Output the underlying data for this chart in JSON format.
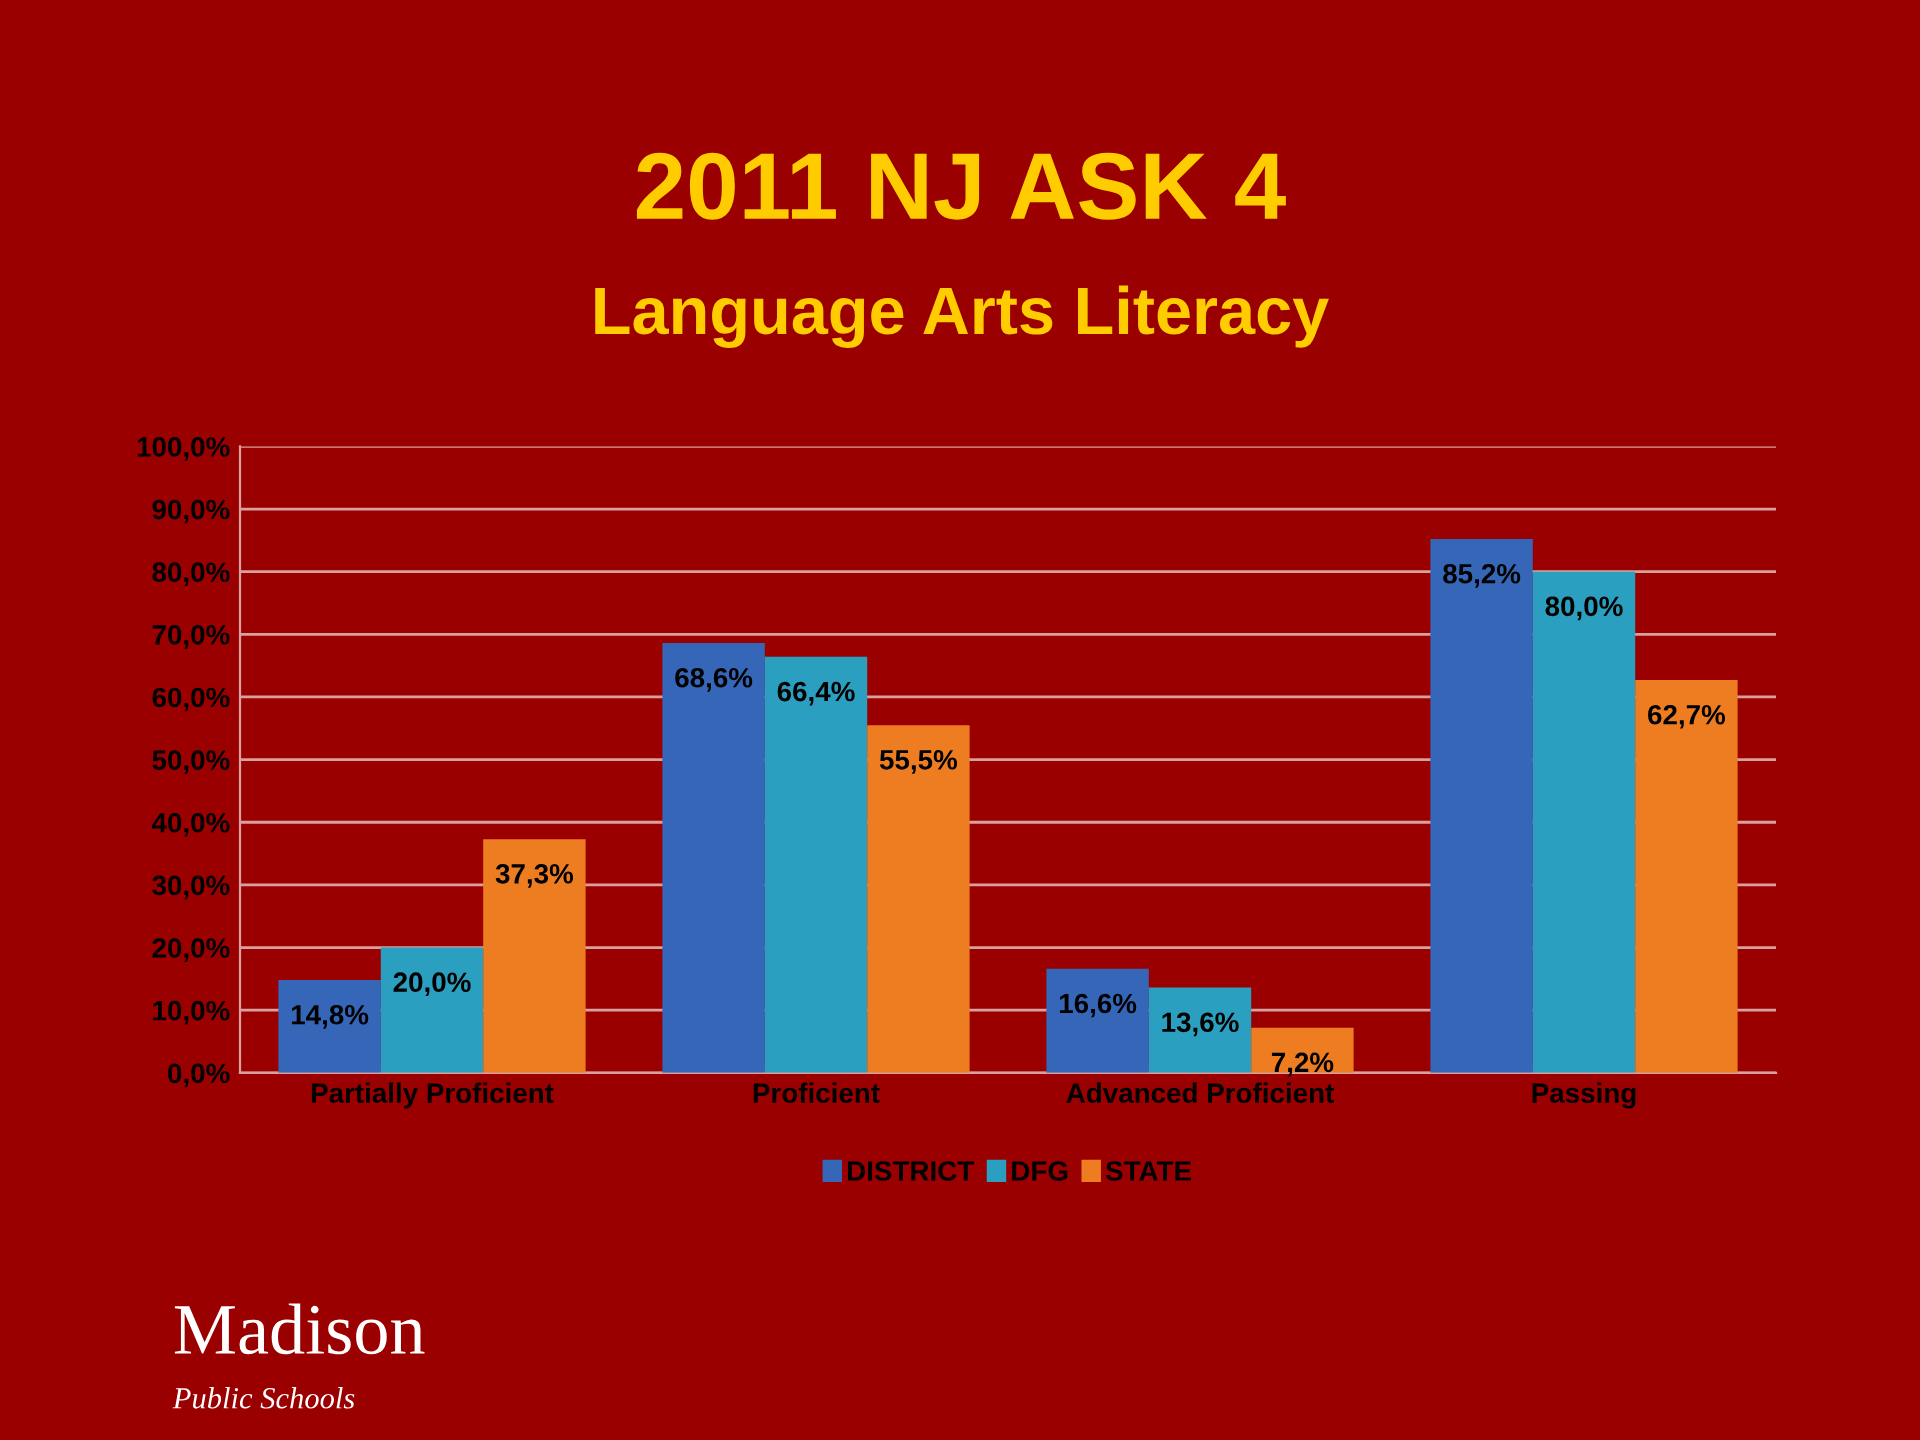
{
  "chart_data": {
    "type": "bar",
    "title": "2011 NJ ASK 4",
    "subtitle": "Language Arts Literacy",
    "categories": [
      "Partially Proficient",
      "Proficient",
      "Advanced Proficient",
      "Passing"
    ],
    "series": [
      {
        "name": "DISTRICT",
        "color": "#3566b8",
        "values": [
          14.8,
          68.6,
          16.6,
          85.2
        ],
        "value_labels": [
          "14,8%",
          "68,6%",
          "16,6%",
          "85,2%"
        ]
      },
      {
        "name": "DFG",
        "color": "#2a9fbf",
        "values": [
          20.0,
          66.4,
          13.6,
          80.0
        ],
        "value_labels": [
          "20,0%",
          "66,4%",
          "13,6%",
          "80,0%"
        ]
      },
      {
        "name": "STATE",
        "color": "#ee7d22",
        "values": [
          37.3,
          55.5,
          7.2,
          62.7
        ],
        "value_labels": [
          "37,3%",
          "55,5%",
          "7,2%",
          "62,7%"
        ]
      }
    ],
    "ylim": [
      0,
      100
    ],
    "yticks": [
      {
        "value": 0,
        "label": "0,0%"
      },
      {
        "value": 10,
        "label": "10,0%"
      },
      {
        "value": 20,
        "label": "20,0%"
      },
      {
        "value": 30,
        "label": "30,0%"
      },
      {
        "value": 40,
        "label": "40,0%"
      },
      {
        "value": 50,
        "label": "50,0%"
      },
      {
        "value": 60,
        "label": "60,0%"
      },
      {
        "value": 70,
        "label": "70,0%"
      },
      {
        "value": 80,
        "label": "80,0%"
      },
      {
        "value": 90,
        "label": "90,0%"
      },
      {
        "value": 100,
        "label": "100,0%"
      }
    ],
    "grid": "y",
    "legend": "bottom",
    "annotations": [
      "Madison",
      "Public Schools"
    ]
  }
}
